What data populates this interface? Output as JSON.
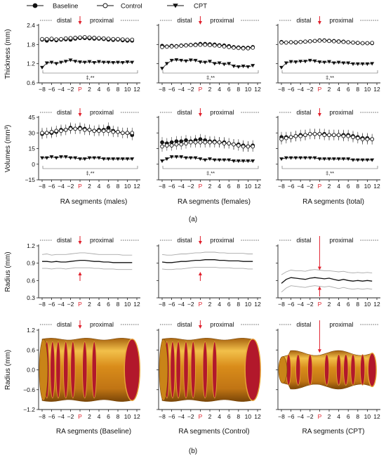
{
  "legend": [
    {
      "name": "Baseline",
      "marker": "filled-circle"
    },
    {
      "name": "Control",
      "marker": "open-circle"
    },
    {
      "name": "CPT",
      "marker": "filled-triangle-down"
    }
  ],
  "labels": {
    "distal": "distal",
    "proximal": "proximal",
    "significance": "‡,**",
    "panel_a": "(a)",
    "panel_b": "(b)"
  },
  "colors": {
    "red_marker": "#e0202c",
    "tube_orange": "#d98c1a",
    "tube_highlight": "#f2c04a",
    "tube_inner": "#b2182b",
    "band_grey": "#a9a9a9"
  },
  "chart_data": [
    {
      "type": "line",
      "id": "thickness-males",
      "ylabel": "Thickness (mm)",
      "xlabel": "",
      "ylim": [
        0.6,
        2.4
      ],
      "yticks": [
        "0.6",
        "1.2",
        "1.8",
        "2.4"
      ],
      "x": [
        -8,
        -7,
        -6,
        -5,
        -4,
        -3,
        -2,
        -1,
        0,
        1,
        2,
        3,
        4,
        5,
        6,
        7,
        8,
        9,
        10,
        11
      ],
      "series": [
        {
          "name": "Baseline",
          "values": [
            1.95,
            1.92,
            1.95,
            1.93,
            1.95,
            1.96,
            1.95,
            1.98,
            2.0,
            2.0,
            1.99,
            1.98,
            1.98,
            1.97,
            1.95,
            1.94,
            1.95,
            1.93,
            1.92,
            1.92
          ]
        },
        {
          "name": "Control",
          "values": [
            1.97,
            1.97,
            1.98,
            1.96,
            1.97,
            1.99,
            2.0,
            2.01,
            2.02,
            2.03,
            2.02,
            2.01,
            2.0,
            1.99,
            1.98,
            1.97,
            1.97,
            1.96,
            1.95,
            1.95
          ]
        },
        {
          "name": "CPT",
          "values": [
            1.08,
            1.22,
            1.24,
            1.2,
            1.24,
            1.27,
            1.31,
            1.27,
            1.25,
            1.24,
            1.26,
            1.23,
            1.26,
            1.24,
            1.24,
            1.23,
            1.24,
            1.23,
            1.25,
            1.24
          ]
        }
      ]
    },
    {
      "type": "line",
      "id": "thickness-females",
      "ylabel": "",
      "xlabel": "",
      "ylim": [
        0.6,
        2.4
      ],
      "x": [
        -8,
        -7,
        -6,
        -5,
        -4,
        -3,
        -2,
        -1,
        0,
        1,
        2,
        3,
        4,
        5,
        6,
        7,
        8,
        9,
        10,
        11
      ],
      "series": [
        {
          "name": "Baseline",
          "values": [
            1.76,
            1.74,
            1.76,
            1.75,
            1.77,
            1.78,
            1.79,
            1.8,
            1.82,
            1.82,
            1.81,
            1.8,
            1.78,
            1.77,
            1.75,
            1.72,
            1.71,
            1.7,
            1.7,
            1.72
          ]
        },
        {
          "name": "Control",
          "values": [
            1.72,
            1.73,
            1.74,
            1.74,
            1.76,
            1.77,
            1.78,
            1.78,
            1.79,
            1.79,
            1.78,
            1.77,
            1.76,
            1.74,
            1.72,
            1.7,
            1.69,
            1.68,
            1.68,
            1.7
          ]
        },
        {
          "name": "CPT",
          "values": [
            1.05,
            1.2,
            1.3,
            1.32,
            1.3,
            1.28,
            1.31,
            1.3,
            1.25,
            1.24,
            1.27,
            1.2,
            1.22,
            1.18,
            1.2,
            1.12,
            1.1,
            1.12,
            1.1,
            1.14
          ]
        }
      ]
    },
    {
      "type": "line",
      "id": "thickness-total",
      "ylabel": "",
      "xlabel": "",
      "ylim": [
        0.6,
        2.4
      ],
      "x": [
        -8,
        -7,
        -6,
        -5,
        -4,
        -3,
        -2,
        -1,
        0,
        1,
        2,
        3,
        4,
        5,
        6,
        7,
        8,
        9,
        10,
        11
      ],
      "series": [
        {
          "name": "Baseline",
          "values": [
            1.88,
            1.86,
            1.87,
            1.86,
            1.88,
            1.89,
            1.9,
            1.91,
            1.93,
            1.93,
            1.92,
            1.91,
            1.9,
            1.89,
            1.87,
            1.86,
            1.85,
            1.84,
            1.84,
            1.84
          ]
        },
        {
          "name": "Control",
          "values": [
            1.86,
            1.86,
            1.87,
            1.87,
            1.88,
            1.89,
            1.9,
            1.91,
            1.92,
            1.92,
            1.91,
            1.9,
            1.89,
            1.88,
            1.87,
            1.86,
            1.85,
            1.84,
            1.84,
            1.85
          ]
        },
        {
          "name": "CPT",
          "values": [
            1.08,
            1.22,
            1.26,
            1.25,
            1.27,
            1.27,
            1.3,
            1.28,
            1.25,
            1.24,
            1.26,
            1.22,
            1.24,
            1.22,
            1.22,
            1.19,
            1.19,
            1.19,
            1.19,
            1.2
          ]
        }
      ]
    },
    {
      "type": "line",
      "id": "volumes-males",
      "ylabel": "Volumes (mm³)",
      "xlabel": "RA segments (males)",
      "ylim": [
        -15,
        45
      ],
      "yticks": [
        "-15",
        "0",
        "15",
        "30",
        "45"
      ],
      "x": [
        -8,
        -7,
        -6,
        -5,
        -4,
        -3,
        -2,
        -1,
        0,
        1,
        2,
        3,
        4,
        5,
        6,
        7,
        8,
        9,
        10,
        11
      ],
      "series": [
        {
          "name": "Baseline",
          "values": [
            29,
            30,
            30,
            31,
            33,
            33,
            35,
            34,
            35,
            34,
            33,
            32,
            33,
            33,
            35,
            32,
            31,
            30,
            30,
            28
          ]
        },
        {
          "name": "Control",
          "values": [
            30,
            30,
            31,
            32,
            32,
            33,
            34,
            34,
            34,
            33,
            33,
            32,
            32,
            32,
            32,
            31,
            31,
            30,
            30,
            30
          ]
        },
        {
          "name": "CPT",
          "values": [
            6,
            6,
            7,
            6,
            7,
            7,
            6,
            6,
            5,
            5,
            6,
            6,
            6,
            5,
            5,
            5,
            5,
            5,
            5,
            5
          ]
        }
      ]
    },
    {
      "type": "line",
      "id": "volumes-females",
      "ylabel": "",
      "xlabel": "RA segments (females)",
      "ylim": [
        -15,
        45
      ],
      "x": [
        -8,
        -7,
        -6,
        -5,
        -4,
        -3,
        -2,
        -1,
        0,
        1,
        2,
        3,
        4,
        5,
        6,
        7,
        8,
        9,
        10,
        11
      ],
      "series": [
        {
          "name": "Baseline",
          "values": [
            21,
            20,
            21,
            22,
            22,
            23,
            22,
            23,
            24,
            23,
            22,
            22,
            21,
            21,
            20,
            19,
            19,
            18,
            17,
            18
          ]
        },
        {
          "name": "Control",
          "values": [
            17,
            18,
            18,
            19,
            19,
            20,
            21,
            21,
            21,
            21,
            21,
            21,
            21,
            20,
            20,
            19,
            18,
            17,
            17,
            17
          ]
        },
        {
          "name": "CPT",
          "values": [
            3,
            5,
            7,
            7,
            7,
            6,
            6,
            6,
            5,
            4,
            5,
            4,
            4,
            4,
            4,
            3,
            3,
            3,
            3,
            3
          ]
        }
      ]
    },
    {
      "type": "line",
      "id": "volumes-total",
      "ylabel": "",
      "xlabel": "RA segments (total)",
      "ylim": [
        -15,
        45
      ],
      "x": [
        -8,
        -7,
        -6,
        -5,
        -4,
        -3,
        -2,
        -1,
        0,
        1,
        2,
        3,
        4,
        5,
        6,
        7,
        8,
        9,
        10,
        11
      ],
      "series": [
        {
          "name": "Baseline",
          "values": [
            26,
            26,
            26,
            27,
            28,
            28,
            29,
            29,
            29,
            29,
            28,
            28,
            28,
            28,
            28,
            27,
            26,
            25,
            25,
            24
          ]
        },
        {
          "name": "Control",
          "values": [
            24,
            25,
            26,
            27,
            27,
            28,
            29,
            29,
            29,
            28,
            28,
            28,
            28,
            27,
            27,
            26,
            25,
            24,
            24,
            24
          ]
        },
        {
          "name": "CPT",
          "values": [
            5,
            6,
            6,
            6,
            6,
            6,
            6,
            6,
            5,
            5,
            5,
            5,
            5,
            5,
            5,
            4,
            4,
            4,
            4,
            4
          ]
        }
      ]
    },
    {
      "type": "line",
      "id": "radius-baseline",
      "ylabel": "Radius (mm)",
      "xlabel": "",
      "ylim": [
        0.3,
        1.2
      ],
      "yticks": [
        "0.3",
        "0.6",
        "0.9",
        "1.2"
      ],
      "x": [
        -8,
        -7,
        -6,
        -5,
        -4,
        -3,
        -2,
        -1,
        0,
        1,
        2,
        3,
        4,
        5,
        6,
        7,
        8,
        9,
        10,
        11
      ],
      "series": [
        {
          "name": "mean",
          "values": [
            0.93,
            0.93,
            0.92,
            0.93,
            0.92,
            0.92,
            0.93,
            0.94,
            0.95,
            0.95,
            0.94,
            0.93,
            0.93,
            0.92,
            0.92,
            0.91,
            0.91,
            0.91,
            0.91,
            0.91
          ]
        },
        {
          "name": "upper",
          "values": [
            1.05,
            1.06,
            1.04,
            1.05,
            1.05,
            1.05,
            1.06,
            1.07,
            1.08,
            1.08,
            1.07,
            1.06,
            1.05,
            1.05,
            1.05,
            1.05,
            1.05,
            1.04,
            1.04,
            1.04
          ]
        },
        {
          "name": "lower",
          "values": [
            0.81,
            0.81,
            0.8,
            0.81,
            0.81,
            0.8,
            0.81,
            0.82,
            0.82,
            0.82,
            0.82,
            0.81,
            0.81,
            0.8,
            0.8,
            0.8,
            0.79,
            0.79,
            0.79,
            0.79
          ]
        }
      ]
    },
    {
      "type": "line",
      "id": "radius-control",
      "ylabel": "",
      "xlabel": "",
      "ylim": [
        0.3,
        1.2
      ],
      "x": [
        -8,
        -7,
        -6,
        -5,
        -4,
        -3,
        -2,
        -1,
        0,
        1,
        2,
        3,
        4,
        5,
        6,
        7,
        8,
        9,
        10,
        11
      ],
      "series": [
        {
          "name": "mean",
          "values": [
            0.92,
            0.91,
            0.91,
            0.92,
            0.93,
            0.93,
            0.94,
            0.95,
            0.95,
            0.96,
            0.96,
            0.96,
            0.95,
            0.95,
            0.94,
            0.94,
            0.94,
            0.93,
            0.93,
            0.93
          ]
        },
        {
          "name": "upper",
          "values": [
            1.05,
            1.04,
            1.04,
            1.05,
            1.06,
            1.06,
            1.07,
            1.08,
            1.08,
            1.09,
            1.09,
            1.09,
            1.08,
            1.08,
            1.07,
            1.07,
            1.07,
            1.07,
            1.06,
            1.06
          ]
        },
        {
          "name": "lower",
          "values": [
            0.8,
            0.79,
            0.79,
            0.8,
            0.8,
            0.81,
            0.82,
            0.83,
            0.83,
            0.83,
            0.83,
            0.83,
            0.82,
            0.82,
            0.82,
            0.81,
            0.81,
            0.81,
            0.8,
            0.8
          ]
        }
      ]
    },
    {
      "type": "line",
      "id": "radius-cpt",
      "ylabel": "",
      "xlabel": "",
      "ylim": [
        0.3,
        1.2
      ],
      "x": [
        -8,
        -7,
        -6,
        -5,
        -4,
        -3,
        -2,
        -1,
        0,
        1,
        2,
        3,
        4,
        5,
        6,
        7,
        8,
        9,
        10,
        11
      ],
      "series": [
        {
          "name": "mean",
          "values": [
            0.55,
            0.62,
            0.65,
            0.64,
            0.63,
            0.62,
            0.64,
            0.65,
            0.64,
            0.63,
            0.64,
            0.62,
            0.6,
            0.62,
            0.6,
            0.59,
            0.6,
            0.59,
            0.6,
            0.59
          ]
        },
        {
          "name": "upper",
          "values": [
            0.7,
            0.75,
            0.78,
            0.77,
            0.77,
            0.76,
            0.78,
            0.79,
            0.78,
            0.77,
            0.77,
            0.76,
            0.75,
            0.76,
            0.74,
            0.73,
            0.74,
            0.73,
            0.74,
            0.73
          ]
        },
        {
          "name": "lower",
          "values": [
            0.4,
            0.47,
            0.51,
            0.5,
            0.49,
            0.48,
            0.5,
            0.51,
            0.5,
            0.49,
            0.5,
            0.48,
            0.46,
            0.48,
            0.46,
            0.45,
            0.46,
            0.45,
            0.46,
            0.45
          ]
        }
      ]
    },
    {
      "type": "other",
      "id": "tube-baseline",
      "ylabel": "Radius (mm)",
      "xlabel": "RA segments (Baseline)",
      "ylim": [
        -1.2,
        1.2
      ],
      "yticks": [
        "-1.2",
        "-0.6",
        "0.0",
        "0.6",
        "1.2"
      ],
      "radius": 0.93
    },
    {
      "type": "other",
      "id": "tube-control",
      "ylabel": "",
      "xlabel": "RA segments (Control)",
      "ylim": [
        -1.2,
        1.2
      ],
      "radius": 0.93
    },
    {
      "type": "other",
      "id": "tube-cpt",
      "ylabel": "",
      "xlabel": "RA segments (CPT)",
      "ylim": [
        -1.2,
        1.2
      ],
      "radius": 0.62
    }
  ],
  "xticks": [
    "-8",
    "-6",
    "-4",
    "-2",
    "P",
    "2",
    "4",
    "6",
    "8",
    "10",
    "12"
  ]
}
